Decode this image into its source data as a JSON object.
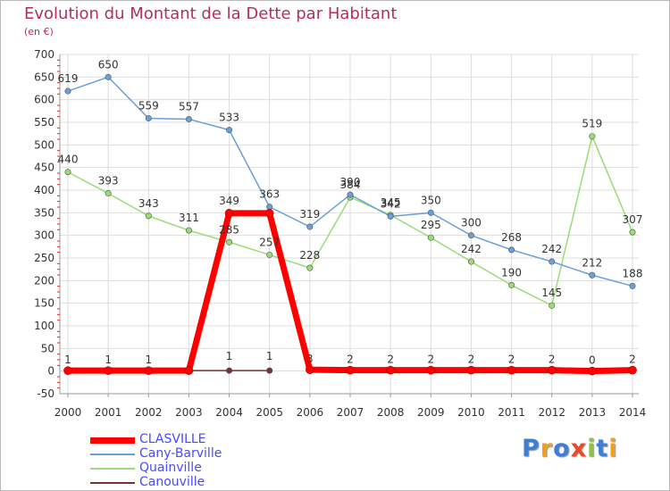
{
  "title": "Evolution du Montant de la Dette par Habitant",
  "subtitle": "(en €)",
  "logo": {
    "letters": [
      {
        "ch": "P",
        "color": "#3d7fd6"
      },
      {
        "ch": "r",
        "color": "#f0a020"
      },
      {
        "ch": "o",
        "color": "#3d7fd6"
      },
      {
        "ch": "x",
        "color": "#e64b2a"
      },
      {
        "ch": "i",
        "color": "#8cc640"
      },
      {
        "ch": "t",
        "color": "#3d7fd6"
      },
      {
        "ch": "i",
        "color": "#f0a020"
      }
    ]
  },
  "chart_data": {
    "type": "line",
    "x": [
      2000,
      2001,
      2002,
      2003,
      2004,
      2005,
      2006,
      2007,
      2008,
      2009,
      2010,
      2011,
      2012,
      2013,
      2014
    ],
    "ylim": [
      -50,
      700
    ],
    "yticks": [
      -50,
      0,
      50,
      100,
      150,
      200,
      250,
      300,
      350,
      400,
      450,
      500,
      550,
      600,
      650,
      700
    ],
    "grid": true,
    "legend_position": "bottom-left",
    "series": [
      {
        "name": "CLASVILLE",
        "color": "#ff0000",
        "width": 7,
        "values": [
          1,
          1,
          1,
          1,
          349,
          349,
          3,
          2,
          2,
          2,
          2,
          2,
          2,
          0,
          2
        ],
        "labels": [
          "1",
          "1",
          "1",
          "",
          "349",
          "",
          "3",
          "2",
          "2",
          "2",
          "2",
          "2",
          "2",
          "0",
          "2"
        ]
      },
      {
        "name": "Cany-Barville",
        "color": "#6a9fd8",
        "width": 1.5,
        "values": [
          619,
          650,
          559,
          557,
          533,
          363,
          319,
          390,
          342,
          350,
          300,
          268,
          242,
          212,
          188
        ],
        "labels": [
          "619",
          "650",
          "559",
          "557",
          "533",
          "363",
          "319",
          "390",
          "342",
          "350",
          "300",
          "268",
          "242",
          "212",
          "188"
        ]
      },
      {
        "name": "Quainville",
        "color": "#99dd77",
        "width": 1.5,
        "values": [
          440,
          393,
          343,
          311,
          285,
          257,
          228,
          384,
          345,
          295,
          242,
          190,
          145,
          519,
          307
        ],
        "labels": [
          "440",
          "393",
          "343",
          "311",
          "285",
          "257",
          "228",
          "384",
          "345",
          "295",
          "242",
          "190",
          "145",
          "519",
          "307"
        ]
      },
      {
        "name": "Canouville",
        "color": "#7a3030",
        "width": 1.5,
        "values": [
          1,
          1,
          1,
          1,
          1,
          1,
          null,
          null,
          null,
          null,
          null,
          null,
          null,
          null,
          null
        ],
        "labels": [
          "",
          "",
          "",
          "",
          "1",
          "1",
          "",
          "",
          "",
          "",
          "",
          "",
          "",
          "",
          ""
        ]
      }
    ]
  }
}
